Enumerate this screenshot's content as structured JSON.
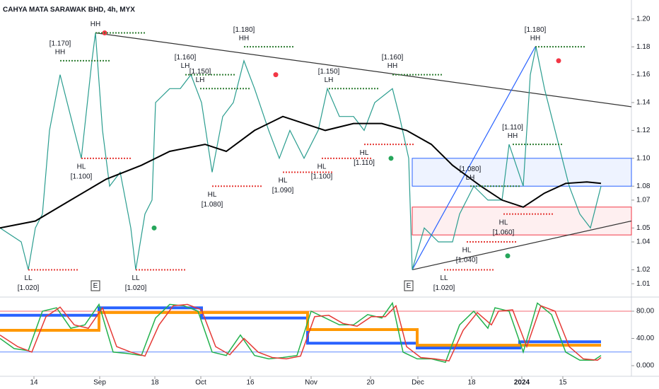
{
  "chart_data": [
    {
      "type": "line",
      "title": "CAHYA MATA SARAWAK BHD, 4h, MYX",
      "xlim": [
        0,
        893
      ],
      "ylim": [
        1.005,
        1.2075
      ],
      "yticks": [
        {
          "value": 1.2,
          "label": "1.20"
        },
        {
          "value": 1.18,
          "label": "1.18"
        },
        {
          "value": 1.16,
          "label": "1.16"
        },
        {
          "value": 1.14,
          "label": "1.14"
        },
        {
          "value": 1.12,
          "label": "1.12"
        },
        {
          "value": 1.1,
          "label": "1.10"
        },
        {
          "value": 1.08,
          "label": "1.08"
        },
        {
          "value": 1.07,
          "label": "1.07"
        },
        {
          "value": 1.05,
          "label": "1.05"
        },
        {
          "value": 1.04,
          "label": "1.04"
        },
        {
          "value": 1.02,
          "label": "1.02"
        },
        {
          "value": 1.01,
          "label": "1.01"
        }
      ],
      "series": [
        {
          "color": "#2a9d8f",
          "x": [
            0,
            30,
            40,
            50,
            60,
            70,
            85,
            100,
            115,
            130,
            135,
            145,
            155,
            170,
            185,
            192,
            205,
            215,
            220,
            240,
            255,
            270,
            285,
            300,
            315,
            330,
            345,
            360,
            380,
            395,
            410,
            430,
            450,
            463,
            480,
            500,
            515,
            530,
            555,
            565,
            578,
            583,
            600,
            620,
            640,
            650,
            670,
            690,
            710,
            720,
            740,
            750,
            758,
            770,
            780,
            795,
            805,
            820,
            835,
            850
          ],
          "values": [
            1.05,
            1.04,
            1.02,
            1.05,
            1.06,
            1.12,
            1.16,
            1.13,
            1.1,
            1.17,
            1.19,
            1.12,
            1.08,
            1.09,
            1.05,
            1.02,
            1.06,
            1.07,
            1.14,
            1.15,
            1.15,
            1.16,
            1.14,
            1.09,
            1.13,
            1.14,
            1.17,
            1.15,
            1.12,
            1.1,
            1.12,
            1.1,
            1.12,
            1.15,
            1.13,
            1.13,
            1.12,
            1.14,
            1.15,
            1.13,
            1.1,
            1.02,
            1.05,
            1.04,
            1.04,
            1.06,
            1.08,
            1.07,
            1.07,
            1.11,
            1.08,
            1.16,
            1.18,
            1.15,
            1.13,
            1.1,
            1.08,
            1.06,
            1.05,
            1.08
          ]
        },
        {
          "color": "#000000",
          "x": [
            0,
            50,
            100,
            150,
            200,
            240,
            290,
            320,
            360,
            400,
            430,
            460,
            500,
            540,
            575,
            610,
            640,
            680,
            710,
            740,
            770,
            800,
            830,
            850
          ],
          "values": [
            1.05,
            1.055,
            1.07,
            1.085,
            1.095,
            1.105,
            1.11,
            1.105,
            1.12,
            1.13,
            1.125,
            1.12,
            1.125,
            1.125,
            1.12,
            1.11,
            1.095,
            1.08,
            1.07,
            1.065,
            1.075,
            1.082,
            1.083,
            1.082
          ]
        }
      ],
      "zones": [
        {
          "x": [
            583,
            893
          ],
          "values": [
            1.08,
            1.1
          ],
          "color": "#2962ff"
        },
        {
          "x": [
            583,
            893
          ],
          "values": [
            1.045,
            1.065
          ],
          "color": "#f23645"
        }
      ],
      "trendlines": [
        {
          "x": [
            135,
            893
          ],
          "values": [
            1.19,
            1.137
          ],
          "color": "#333333"
        },
        {
          "x": [
            583,
            893
          ],
          "values": [
            1.02,
            1.055
          ],
          "color": "#333333"
        },
        {
          "x": [
            583,
            757
          ],
          "values": [
            1.02,
            1.18
          ],
          "color": "#2962ff"
        }
      ],
      "dots": [
        {
          "x": 148,
          "value": 1.19,
          "color": "#f23645"
        },
        {
          "x": 390,
          "value": 1.16,
          "color": "#f23645"
        },
        {
          "x": 790,
          "value": 1.17,
          "color": "#f23645"
        },
        {
          "x": 218,
          "value": 1.05,
          "color": "#26a65b"
        },
        {
          "x": 553,
          "value": 1.1,
          "color": "#26a65b"
        },
        {
          "x": 718,
          "value": 1.03,
          "color": "#26a65b"
        }
      ],
      "events": [
        {
          "x": 135,
          "label": "E"
        },
        {
          "x": 578,
          "label": "E"
        }
      ],
      "pivots": [
        {
          "label": "HH",
          "price_label": "[1.170]",
          "x": 85,
          "value": 1.17,
          "side": "above"
        },
        {
          "label": "HH",
          "x": 135,
          "value": 1.19,
          "side": "above"
        },
        {
          "label": "LL",
          "price_label": "[1.020]",
          "x": 40,
          "value": 1.02,
          "side": "below"
        },
        {
          "label": "HL",
          "price_label": "[1.100]",
          "x": 115,
          "value": 1.1,
          "side": "below"
        },
        {
          "label": "LL",
          "price_label": "[1.020]",
          "x": 192,
          "value": 1.02,
          "side": "below"
        },
        {
          "label": "LH",
          "price_label": "[1.160]",
          "x": 262,
          "value": 1.16,
          "side": "above"
        },
        {
          "label": "LH",
          "price_label": "[1.150]",
          "x": 283,
          "value": 1.15,
          "side": "above"
        },
        {
          "label": "HL",
          "price_label": "[1.080]",
          "x": 300,
          "value": 1.08,
          "side": "below"
        },
        {
          "label": "HH",
          "price_label": "[1.180]",
          "x": 345,
          "value": 1.18,
          "side": "above"
        },
        {
          "label": "HL",
          "price_label": "[1.090]",
          "x": 400,
          "value": 1.09,
          "side": "below"
        },
        {
          "label": "HL",
          "price_label": "[1.100]",
          "x": 455,
          "value": 1.1,
          "side": "below"
        },
        {
          "label": "LH",
          "price_label": "[1.150]",
          "x": 465,
          "value": 1.15,
          "side": "above"
        },
        {
          "label": "HL",
          "price_label": "[1.110]",
          "x": 515,
          "value": 1.11,
          "side": "below"
        },
        {
          "label": "HH",
          "price_label": "[1.160]",
          "x": 555,
          "value": 1.16,
          "side": "above"
        },
        {
          "label": "LL",
          "price_label": "[1.020]",
          "x": 628,
          "value": 1.02,
          "side": "below"
        },
        {
          "label": "HL",
          "price_label": "[1.040]",
          "x": 660,
          "value": 1.04,
          "side": "below"
        },
        {
          "label": "LH",
          "price_label": "[1.080]",
          "x": 665,
          "value": 1.08,
          "side": "above"
        },
        {
          "label": "HL",
          "price_label": "[1.060]",
          "x": 712,
          "value": 1.06,
          "side": "below"
        },
        {
          "label": "HH",
          "price_label": "[1.110]",
          "x": 725,
          "value": 1.11,
          "side": "above"
        },
        {
          "label": "HH",
          "price_label": "[1.180]",
          "x": 757,
          "value": 1.18,
          "side": "above"
        }
      ]
    },
    {
      "type": "line",
      "xlim": [
        0,
        893
      ],
      "ylim": [
        -13.5,
        95.6
      ],
      "xticks": [
        {
          "value": 48,
          "label": "14"
        },
        {
          "value": 141,
          "label": "Sep"
        },
        {
          "value": 219,
          "label": "18"
        },
        {
          "value": 284,
          "label": "Oct"
        },
        {
          "value": 354,
          "label": "16"
        },
        {
          "value": 440,
          "label": "Nov"
        },
        {
          "value": 524,
          "label": "20"
        },
        {
          "value": 591,
          "label": "Dec"
        },
        {
          "value": 667,
          "label": "18"
        },
        {
          "value": 738,
          "label": "2024"
        },
        {
          "value": 796,
          "label": "15"
        }
      ],
      "yticks": [
        {
          "value": 80,
          "label": "80.00"
        },
        {
          "value": 40,
          "label": "40.00"
        },
        {
          "value": 0,
          "label": "0.000"
        }
      ],
      "hlines": [
        {
          "value": 80,
          "color": "#f23645"
        },
        {
          "value": 20,
          "color": "#2962ff"
        }
      ],
      "series": [
        {
          "color": "#2962ff",
          "width": 4,
          "x": [
            0,
            140,
            140,
            285,
            285,
            435,
            435,
            590,
            590,
            735,
            735,
            850
          ],
          "values": [
            74,
            74,
            85,
            85,
            70,
            70,
            33,
            33,
            26,
            26,
            35,
            35
          ]
        },
        {
          "color": "#ff9800",
          "width": 4,
          "x": [
            0,
            140,
            140,
            435,
            435,
            590,
            590,
            735,
            735,
            850
          ],
          "values": [
            52,
            52,
            78,
            78,
            53,
            53,
            30,
            30,
            30,
            30
          ]
        },
        {
          "color": "#22b14c",
          "width": 1.5,
          "x": [
            0,
            20,
            40,
            60,
            80,
            100,
            120,
            140,
            160,
            180,
            200,
            220,
            240,
            260,
            280,
            300,
            320,
            340,
            360,
            380,
            400,
            420,
            440,
            460,
            480,
            500,
            520,
            540,
            555,
            570,
            590,
            610,
            630,
            650,
            670,
            690,
            700,
            720,
            740,
            760,
            780,
            800,
            820,
            840,
            850
          ],
          "values": [
            40,
            25,
            22,
            80,
            85,
            55,
            60,
            90,
            20,
            18,
            15,
            70,
            90,
            88,
            80,
            20,
            15,
            45,
            15,
            10,
            12,
            15,
            80,
            70,
            60,
            60,
            75,
            70,
            92,
            20,
            10,
            10,
            5,
            60,
            80,
            55,
            85,
            80,
            20,
            92,
            75,
            20,
            8,
            8,
            15
          ]
        },
        {
          "color": "#e53935",
          "width": 1.5,
          "x": [
            0,
            25,
            45,
            65,
            85,
            105,
            125,
            145,
            165,
            185,
            205,
            225,
            245,
            265,
            285,
            305,
            325,
            345,
            365,
            385,
            405,
            425,
            445,
            465,
            485,
            505,
            525,
            545,
            560,
            575,
            595,
            615,
            635,
            655,
            675,
            695,
            705,
            725,
            745,
            765,
            785,
            805,
            825,
            845,
            850
          ],
          "values": [
            45,
            28,
            20,
            72,
            86,
            60,
            55,
            85,
            28,
            20,
            14,
            60,
            88,
            90,
            82,
            28,
            16,
            40,
            20,
            12,
            10,
            14,
            72,
            74,
            62,
            58,
            72,
            72,
            88,
            28,
            12,
            10,
            7,
            52,
            78,
            60,
            80,
            82,
            28,
            88,
            80,
            28,
            10,
            8,
            12
          ]
        }
      ]
    }
  ]
}
